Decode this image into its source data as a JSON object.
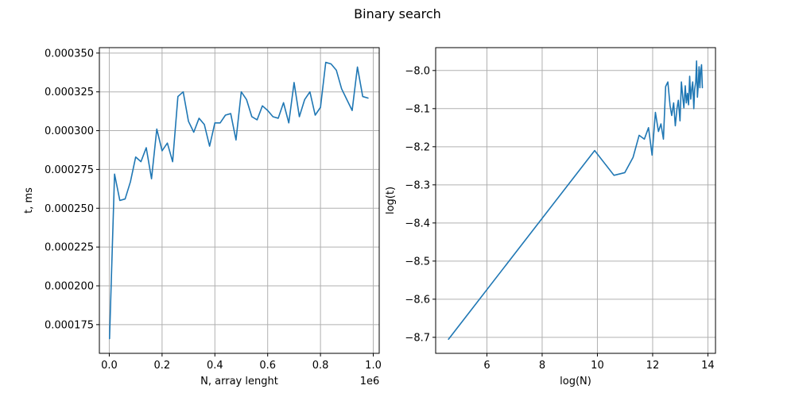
{
  "figure": {
    "suptitle": "Binary search"
  },
  "chart_data": [
    {
      "type": "line",
      "title": "",
      "xlabel": "N, array lenght",
      "ylabel": "t, ms",
      "x_offset_label": "1e6",
      "xlim": [
        -0.0375,
        1.0225
      ],
      "ylim": [
        0.0001565,
        0.0003535
      ],
      "xticks": [
        0.0,
        0.2,
        0.4,
        0.6,
        0.8,
        1.0
      ],
      "xtick_labels": [
        "0.0",
        "0.2",
        "0.4",
        "0.6",
        "0.8",
        "1.0"
      ],
      "yticks": [
        0.000175,
        0.0002,
        0.000225,
        0.00025,
        0.000275,
        0.0003,
        0.000325,
        0.00035
      ],
      "ytick_labels": [
        "0.000175",
        "0.000200",
        "0.000225",
        "0.000250",
        "0.000275",
        "0.000300",
        "0.000325",
        "0.000350"
      ],
      "grid": true,
      "color": "#1f77b4",
      "series": [
        {
          "x": [
            0.001,
            0.02,
            0.04,
            0.06,
            0.08,
            0.1,
            0.12,
            0.14,
            0.16,
            0.18,
            0.2,
            0.22,
            0.24,
            0.26,
            0.28,
            0.3,
            0.32,
            0.34,
            0.36,
            0.38,
            0.4,
            0.42,
            0.44,
            0.46,
            0.48,
            0.5,
            0.52,
            0.54,
            0.56,
            0.58,
            0.6,
            0.62,
            0.64,
            0.66,
            0.68,
            0.7,
            0.72,
            0.74,
            0.76,
            0.78,
            0.8,
            0.82,
            0.84,
            0.86,
            0.88,
            0.9,
            0.92,
            0.94,
            0.96,
            0.98
          ],
          "y": [
            0.000166,
            0.000272,
            0.000255,
            0.000256,
            0.000267,
            0.000283,
            0.00028,
            0.000289,
            0.000269,
            0.000301,
            0.000287,
            0.000292,
            0.00028,
            0.000322,
            0.000325,
            0.000306,
            0.000299,
            0.000308,
            0.000304,
            0.00029,
            0.000305,
            0.000305,
            0.00031,
            0.000311,
            0.000294,
            0.000325,
            0.00032,
            0.000309,
            0.000307,
            0.000316,
            0.000313,
            0.000309,
            0.000308,
            0.000318,
            0.000305,
            0.000331,
            0.000309,
            0.00032,
            0.000325,
            0.00031,
            0.000315,
            0.000344,
            0.000343,
            0.000339,
            0.000327,
            0.00032,
            0.000313,
            0.000341,
            0.000322,
            0.000321
          ]
        }
      ]
    },
    {
      "type": "line",
      "title": "",
      "xlabel": "log(N)",
      "ylabel": "log(t)",
      "xlim": [
        4.145,
        14.275
      ],
      "ylim": [
        -8.742,
        -7.94
      ],
      "xticks": [
        6,
        8,
        10,
        12,
        14
      ],
      "xtick_labels": [
        "6",
        "8",
        "10",
        "12",
        "14"
      ],
      "yticks": [
        -8.7,
        -8.6,
        -8.5,
        -8.4,
        -8.3,
        -8.2,
        -8.1,
        -8.0
      ],
      "ytick_labels": [
        "−8.7",
        "−8.6",
        "−8.5",
        "−8.4",
        "−8.3",
        "−8.2",
        "−8.1",
        "−8.0"
      ],
      "grid": true,
      "color": "#1f77b4",
      "series": [
        {
          "x": [
            4.61,
            9.9,
            10.6,
            10.99,
            11.29,
            11.51,
            11.7,
            11.85,
            11.98,
            12.1,
            12.21,
            12.3,
            12.39,
            12.47,
            12.55,
            12.63,
            12.69,
            12.76,
            12.82,
            12.88,
            12.93,
            12.99,
            13.04,
            13.09,
            13.13,
            13.18,
            13.22,
            13.26,
            13.3,
            13.34,
            13.38,
            13.42,
            13.45,
            13.49,
            13.52,
            13.56,
            13.59,
            13.62,
            13.65,
            13.68,
            13.71,
            13.74,
            13.77,
            13.8
          ],
          "y": [
            -8.705,
            -8.21,
            -8.275,
            -8.268,
            -8.228,
            -8.17,
            -8.18,
            -8.15,
            -8.222,
            -8.11,
            -8.16,
            -8.14,
            -8.18,
            -8.042,
            -8.03,
            -8.092,
            -8.118,
            -8.085,
            -8.145,
            -8.1,
            -8.078,
            -8.132,
            -8.03,
            -8.07,
            -8.098,
            -8.04,
            -8.085,
            -8.06,
            -8.09,
            -8.015,
            -8.075,
            -8.045,
            -8.03,
            -8.1,
            -8.05,
            -8.03,
            -7.975,
            -8.07,
            -8.04,
            -7.99,
            -8.045,
            -8.0,
            -7.985,
            -8.045
          ]
        }
      ]
    }
  ]
}
